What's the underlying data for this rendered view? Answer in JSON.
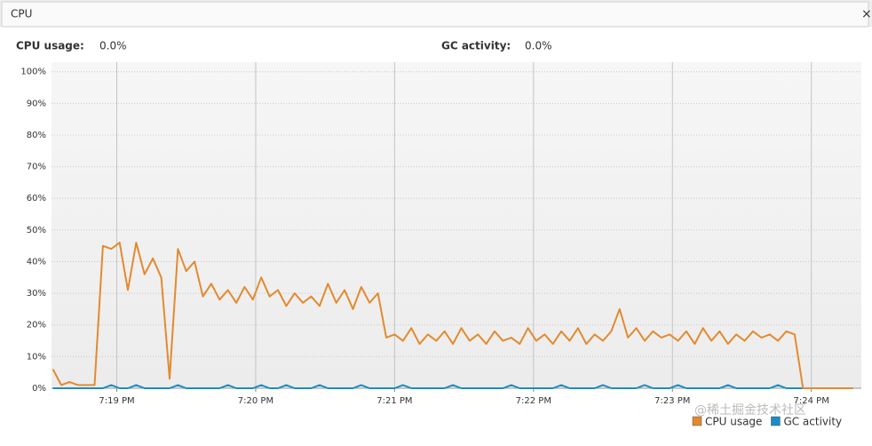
{
  "header": {
    "tab": "CPU",
    "close": "×",
    "stats": [
      {
        "label": "CPU usage:",
        "value": "0.0%"
      },
      {
        "label": "GC activity:",
        "value": "0.0%"
      }
    ]
  },
  "watermark": "@稀土掘金技术社区",
  "chart_data": {
    "type": "line",
    "x": [
      18.54,
      18.6,
      18.66,
      18.72,
      18.78,
      18.84,
      18.9,
      18.96,
      19.02,
      19.08,
      19.14,
      19.2,
      19.26,
      19.32,
      19.38,
      19.44,
      19.5,
      19.56,
      19.62,
      19.68,
      19.74,
      19.8,
      19.86,
      19.92,
      19.98,
      20.04,
      20.1,
      20.16,
      20.22,
      20.28,
      20.34,
      20.4,
      20.46,
      20.52,
      20.58,
      20.64,
      20.7,
      20.76,
      20.82,
      20.88,
      20.94,
      21.0,
      21.06,
      21.12,
      21.18,
      21.24,
      21.3,
      21.36,
      21.42,
      21.48,
      21.54,
      21.6,
      21.66,
      21.72,
      21.78,
      21.84,
      21.9,
      21.96,
      22.02,
      22.08,
      22.14,
      22.2,
      22.26,
      22.32,
      22.38,
      22.44,
      22.5,
      22.56,
      22.62,
      22.68,
      22.74,
      22.8,
      22.86,
      22.92,
      22.98,
      23.04,
      23.1,
      23.16,
      23.22,
      23.28,
      23.34,
      23.4,
      23.46,
      23.52,
      23.58,
      23.64,
      23.7,
      23.76,
      23.82,
      23.88,
      23.94,
      24.0,
      24.06,
      24.12,
      24.18,
      24.24,
      24.3
    ],
    "series": [
      {
        "name": "CPU usage",
        "color": "#e38a2f",
        "values": [
          6,
          1,
          2,
          1,
          1,
          1,
          45,
          44,
          46,
          31,
          46,
          36,
          41,
          35,
          3,
          44,
          37,
          40,
          29,
          33,
          28,
          31,
          27,
          32,
          28,
          35,
          29,
          31,
          26,
          30,
          27,
          29,
          26,
          33,
          27,
          31,
          25,
          32,
          27,
          30,
          16,
          17,
          15,
          19,
          14,
          17,
          15,
          18,
          14,
          19,
          15,
          17,
          14,
          18,
          15,
          16,
          14,
          19,
          15,
          17,
          14,
          18,
          15,
          19,
          14,
          17,
          15,
          18,
          25,
          16,
          19,
          15,
          18,
          16,
          17,
          15,
          18,
          14,
          19,
          15,
          18,
          14,
          17,
          15,
          18,
          16,
          17,
          15,
          18,
          17,
          0,
          0,
          0,
          0,
          0,
          0,
          0
        ]
      },
      {
        "name": "GC activity",
        "color": "#1b8cc4",
        "values": [
          0,
          0,
          0,
          0,
          0,
          0,
          0,
          1,
          0,
          0,
          1,
          0,
          0,
          0,
          0,
          1,
          0,
          0,
          0,
          0,
          0,
          1,
          0,
          0,
          0,
          1,
          0,
          0,
          1,
          0,
          0,
          0,
          1,
          0,
          0,
          0,
          0,
          1,
          0,
          0,
          0,
          0,
          1,
          0,
          0,
          0,
          0,
          0,
          1,
          0,
          0,
          0,
          0,
          0,
          0,
          1,
          0,
          0,
          0,
          0,
          0,
          1,
          0,
          0,
          0,
          0,
          1,
          0,
          0,
          0,
          0,
          1,
          0,
          0,
          0,
          1,
          0,
          0,
          0,
          0,
          0,
          1,
          0,
          0,
          0,
          0,
          0,
          1,
          0,
          0,
          0,
          0,
          0,
          0,
          0,
          0,
          0
        ]
      }
    ],
    "xlim": [
      18.53,
      24.36
    ],
    "xticks": [
      {
        "value": 19,
        "label": "7:19 PM"
      },
      {
        "value": 20,
        "label": "7:20 PM"
      },
      {
        "value": 21,
        "label": "7:21 PM"
      },
      {
        "value": 22,
        "label": "7:22 PM"
      },
      {
        "value": 23,
        "label": "7:23 PM"
      },
      {
        "value": 24,
        "label": "7:24 PM"
      }
    ],
    "ylim": [
      0,
      103
    ],
    "yticks": [
      {
        "value": 0,
        "label": "0%"
      },
      {
        "value": 10,
        "label": "10%"
      },
      {
        "value": 20,
        "label": "20%"
      },
      {
        "value": 30,
        "label": "30%"
      },
      {
        "value": 40,
        "label": "40%"
      },
      {
        "value": 50,
        "label": "50%"
      },
      {
        "value": 60,
        "label": "60%"
      },
      {
        "value": 70,
        "label": "70%"
      },
      {
        "value": 80,
        "label": "80%"
      },
      {
        "value": 90,
        "label": "90%"
      },
      {
        "value": 100,
        "label": "100%"
      }
    ],
    "grid": true,
    "legend": "bottom-right"
  }
}
